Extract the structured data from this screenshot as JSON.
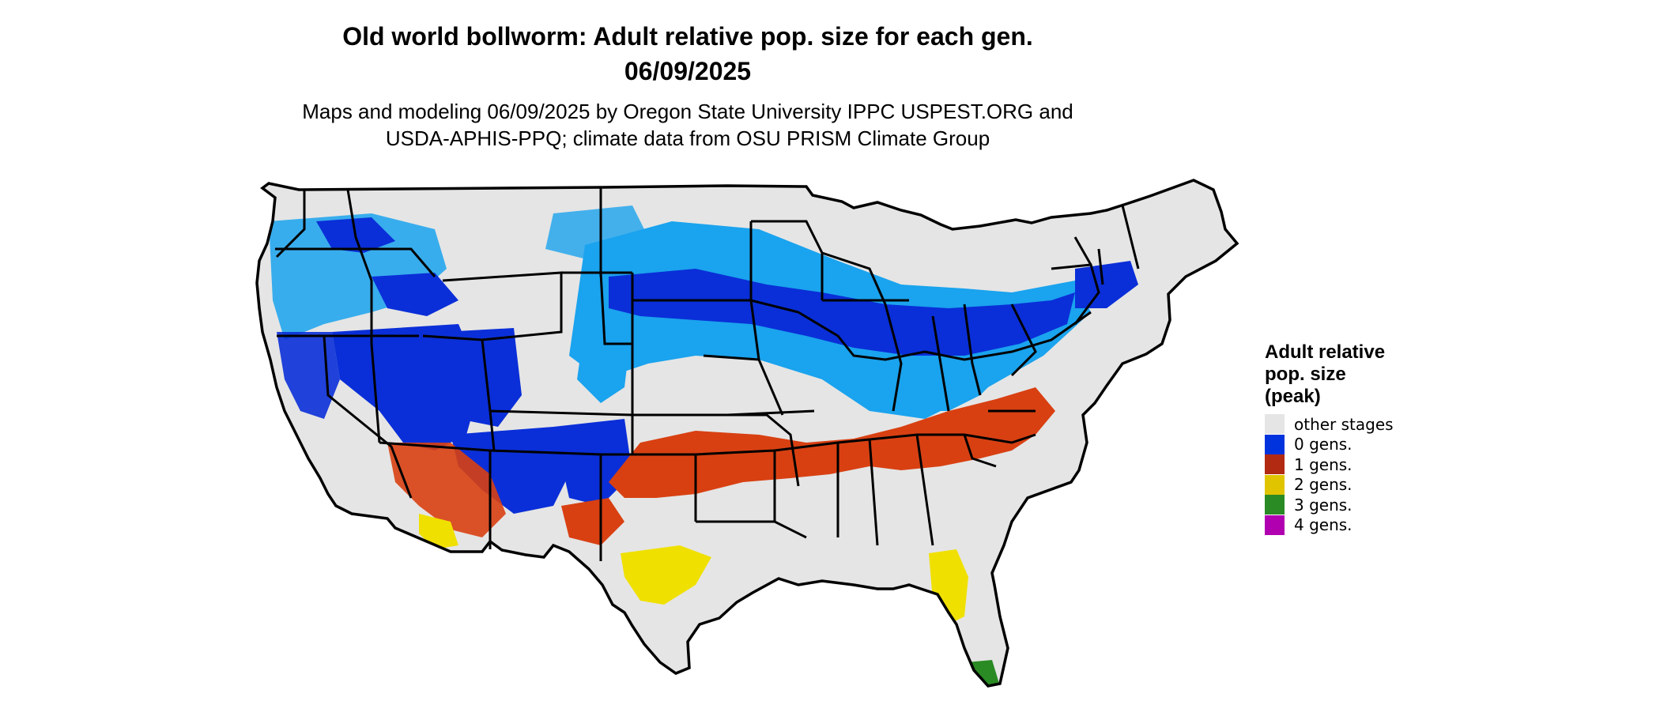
{
  "title": {
    "line1": "Old world bollworm: Adult relative pop. size for each gen.",
    "line2": "06/09/2025"
  },
  "subtitle": {
    "line1": "Maps and modeling 06/09/2025 by Oregon State University IPPC USPEST.ORG and",
    "line2": "USDA-APHIS-PPQ; climate data from OSU PRISM Climate Group"
  },
  "legend": {
    "title_line1": "Adult relative",
    "title_line2": "pop. size",
    "title_line3": "(peak)",
    "items": [
      {
        "label": "other stages",
        "color": "#e5e5e5"
      },
      {
        "label": "0 gens.",
        "color": "#0033dd"
      },
      {
        "label": "1 gens.",
        "color": "#b22a12"
      },
      {
        "label": "2 gens.",
        "color": "#e0c400"
      },
      {
        "label": "3 gens.",
        "color": "#2a8a24"
      },
      {
        "label": "4 gens.",
        "color": "#b000b0"
      }
    ]
  },
  "map": {
    "land_color": "#e5e5e5",
    "region_colors": {
      "zero_gens_dark": "#0a2fd8",
      "zero_gens_light": "#1aa3ee",
      "one_gens": "#d84012",
      "two_gens": "#f0e000",
      "three_gens": "#2a8a24"
    }
  }
}
